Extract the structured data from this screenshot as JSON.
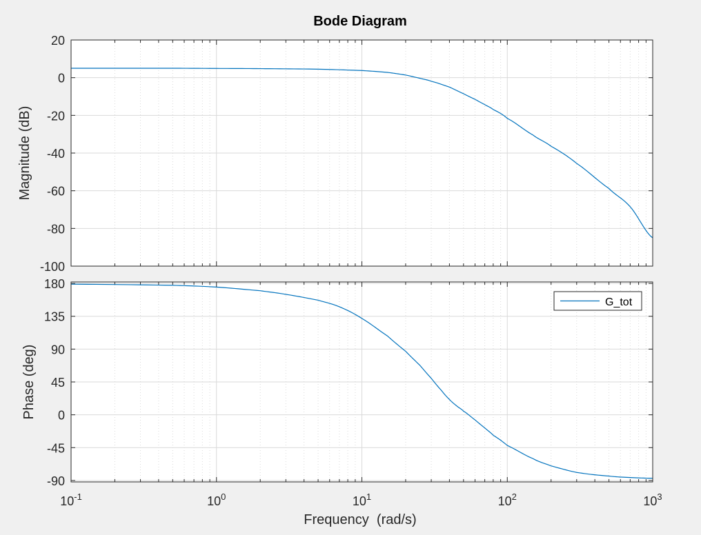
{
  "chart_data": {
    "type": "line",
    "title": "Bode Diagram",
    "xlabel": "Frequency  (rad/s)",
    "xscale": "log",
    "xlim": [
      0.1,
      1000
    ],
    "x_ticks": [
      0.1,
      1,
      10,
      100,
      1000
    ],
    "x_tick_labels": [
      {
        "base": "10",
        "exp": "-1"
      },
      {
        "base": "10",
        "exp": "0"
      },
      {
        "base": "10",
        "exp": "1"
      },
      {
        "base": "10",
        "exp": "2"
      },
      {
        "base": "10",
        "exp": "3"
      }
    ],
    "grid": true,
    "colors": {
      "series": "#0072bd",
      "figure_bg": "#f0f0f0",
      "axes_bg": "#ffffff",
      "grid": "#d9d9d9",
      "axis": "#262626"
    },
    "panels": [
      {
        "name": "magnitude",
        "ylabel": "Magnitude (dB)",
        "ylim": [
          -100,
          20
        ],
        "yticks": [
          20,
          0,
          -20,
          -40,
          -60,
          -80,
          -100
        ],
        "ytick_labels": [
          "20",
          "0",
          "-20",
          "-40",
          "-60",
          "-80",
          "-100"
        ],
        "series": [
          {
            "x": [
              0.1,
              0.5,
              1,
              2,
              5,
              10,
              15,
              20,
              25,
              30,
              40,
              50,
              60,
              70,
              80,
              100,
              150,
              200,
              300,
              500,
              700,
              1000
            ],
            "y": [
              5.0,
              5.0,
              4.9,
              4.8,
              4.5,
              3.8,
              2.8,
              1.4,
              -0.3,
              -1.9,
              -5.0,
              -8.5,
              -11.5,
              -14.3,
              -16.9,
              -21.6,
              -30.4,
              -36.4,
              -45.5,
              -58.8,
              -68.5,
              -85.0
            ]
          }
        ]
      },
      {
        "name": "phase",
        "ylabel": "Phase (deg)",
        "ylim": [
          -92,
          182
        ],
        "yticks": [
          180,
          135,
          90,
          45,
          0,
          -45,
          -90
        ],
        "ytick_labels": [
          "180",
          "135",
          "90",
          "45",
          "0",
          "-45",
          "-90"
        ],
        "legend_position": "top-right",
        "series": [
          {
            "name": "G_tot",
            "x": [
              0.1,
              0.5,
              1,
              2,
              3,
              5,
              7,
              10,
              15,
              20,
              25,
              30,
              35,
              40,
              45,
              50,
              60,
              70,
              80,
              100,
              150,
              200,
              300,
              500,
              700,
              1000
            ],
            "y": [
              179,
              177.5,
              175,
              170,
              165,
              157,
              148,
              132,
              108,
              87,
              68,
              50,
              34,
              21,
              12,
              5,
              -7,
              -18,
              -28,
              -42,
              -60,
              -70,
              -79,
              -84,
              -86,
              -87
            ]
          }
        ]
      }
    ]
  }
}
